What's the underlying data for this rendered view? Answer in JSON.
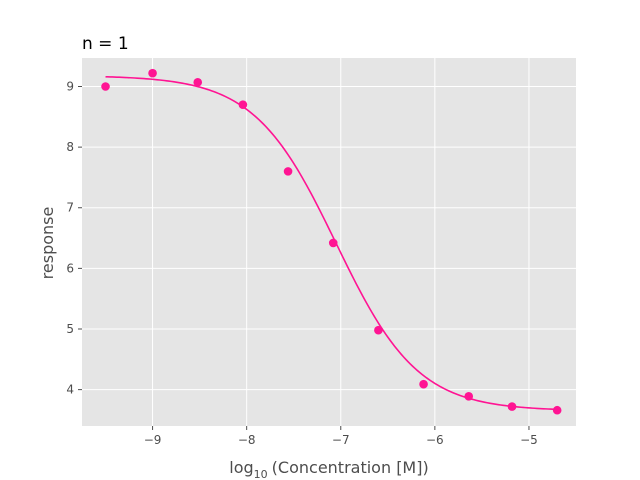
{
  "chart_data": {
    "type": "scatter",
    "title": "n = 1",
    "xlabel_prefix": "log",
    "xlabel_subscript": "10",
    "xlabel_suffix": "(Concentration [M])",
    "ylabel": "response",
    "xlim": [
      -9.75,
      -4.5
    ],
    "ylim": [
      3.4,
      9.47
    ],
    "x_ticks": [
      -9,
      -8,
      -7,
      -6,
      -5
    ],
    "x_tick_labels": [
      "−9",
      "−8",
      "−7",
      "−6",
      "−5"
    ],
    "y_ticks": [
      4,
      5,
      6,
      7,
      8,
      9
    ],
    "y_tick_labels": [
      "4",
      "5",
      "6",
      "7",
      "8",
      "9"
    ],
    "grid": true,
    "colors": {
      "series": "#ff1493",
      "plot_background": "#e5e5e5",
      "grid": "#ffffff",
      "text": "#4d4d4d"
    },
    "points": {
      "x": [
        -9.5,
        -9.0,
        -8.52,
        -8.04,
        -7.56,
        -7.08,
        -6.6,
        -6.12,
        -5.64,
        -5.18,
        -4.7
      ],
      "y": [
        9.0,
        9.22,
        9.07,
        8.7,
        7.6,
        6.42,
        4.98,
        4.09,
        3.89,
        3.72,
        3.66
      ]
    },
    "fit_curve": {
      "type": "four-parameter logistic",
      "top": 9.18,
      "bottom": 3.65,
      "log_ec50": -7.05,
      "hill_slope": 1.0,
      "x_range": [
        -9.5,
        -4.7
      ]
    }
  }
}
